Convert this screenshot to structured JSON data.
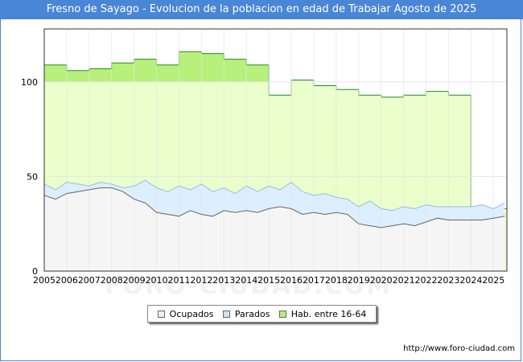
{
  "header": {
    "title": "Fresno de Sayago - Evolucion de la poblacion en edad de Trabajar Agosto de 2025"
  },
  "footer": {
    "url": "http://www.foro-ciudad.com",
    "watermark": "FORO-CIUDAD.COM"
  },
  "chart_data": {
    "type": "area",
    "title": "Fresno de Sayago - Evolucion de la poblacion en edad de Trabajar Agosto de 2025",
    "xlabel": "",
    "ylabel": "",
    "xlim": [
      2005,
      2025.6
    ],
    "ylim": [
      0,
      128
    ],
    "y_ticks": [
      0,
      50,
      100
    ],
    "x_ticks": [
      "2005",
      "2006",
      "2007",
      "2008",
      "2009",
      "2010",
      "2011",
      "2012",
      "2013",
      "2014",
      "2015",
      "2016",
      "2017",
      "2018",
      "2019",
      "2020",
      "2021",
      "2022",
      "2023",
      "2024",
      "2025"
    ],
    "grid": true,
    "legend_position": "bottom",
    "colors": {
      "ocupados": "#f5f5f5",
      "parados": "#ddeeff",
      "hab": "#eaffcc",
      "hab_top": "#b7f07a",
      "hab_line": "#228b22",
      "line": "#666666",
      "grid": "#e6e6e6"
    },
    "legend": [
      {
        "name": "Ocupados",
        "color": "#f0f0f0"
      },
      {
        "name": "Parados",
        "color": "#cce2ff"
      },
      {
        "name": "Hab. entre 16-64",
        "color": "#b3f07a"
      }
    ],
    "series": [
      {
        "name": "Hab. entre 16-64",
        "step": true,
        "x": [
          2005,
          2006,
          2007,
          2008,
          2009,
          2010,
          2011,
          2012,
          2013,
          2014,
          2015,
          2016,
          2017,
          2018,
          2019,
          2020,
          2021,
          2022,
          2023,
          2024
        ],
        "values": [
          109,
          106,
          107,
          110,
          112,
          109,
          116,
          115,
          112,
          109,
          93,
          101,
          98,
          96,
          93,
          92,
          93,
          95,
          93,
          33
        ]
      },
      {
        "name": "Parados",
        "x": [
          2005,
          2005.5,
          2006,
          2006.5,
          2007,
          2007.5,
          2008,
          2008.5,
          2009,
          2009.5,
          2010,
          2010.5,
          2011,
          2011.5,
          2012,
          2012.5,
          2013,
          2013.5,
          2014,
          2014.5,
          2015,
          2015.5,
          2016,
          2016.5,
          2017,
          2017.5,
          2018,
          2018.5,
          2019,
          2019.5,
          2020,
          2020.5,
          2021,
          2021.5,
          2022,
          2022.5,
          2023,
          2023.5,
          2024,
          2024.5,
          2025,
          2025.5
        ],
        "values": [
          46,
          43,
          47,
          46,
          45,
          47,
          46,
          44,
          45,
          48,
          44,
          42,
          45,
          43,
          46,
          42,
          44,
          41,
          45,
          42,
          45,
          43,
          47,
          42,
          40,
          41,
          39,
          38,
          34,
          37,
          33,
          32,
          34,
          33,
          35,
          34,
          34,
          34,
          34,
          35,
          33,
          36
        ]
      },
      {
        "name": "Ocupados",
        "x": [
          2005,
          2005.5,
          2006,
          2006.5,
          2007,
          2007.5,
          2008,
          2008.5,
          2009,
          2009.5,
          2010,
          2010.5,
          2011,
          2011.5,
          2012,
          2012.5,
          2013,
          2013.5,
          2014,
          2014.5,
          2015,
          2015.5,
          2016,
          2016.5,
          2017,
          2017.5,
          2018,
          2018.5,
          2019,
          2019.5,
          2020,
          2020.5,
          2021,
          2021.5,
          2022,
          2022.5,
          2023,
          2023.5,
          2024,
          2024.5,
          2025,
          2025.5
        ],
        "values": [
          40,
          38,
          41,
          42,
          43,
          44,
          44,
          42,
          38,
          36,
          31,
          30,
          29,
          32,
          30,
          29,
          32,
          31,
          32,
          31,
          33,
          34,
          33,
          30,
          31,
          30,
          31,
          30,
          25,
          24,
          23,
          24,
          25,
          24,
          26,
          28,
          27,
          27,
          27,
          27,
          28,
          29
        ]
      }
    ]
  }
}
